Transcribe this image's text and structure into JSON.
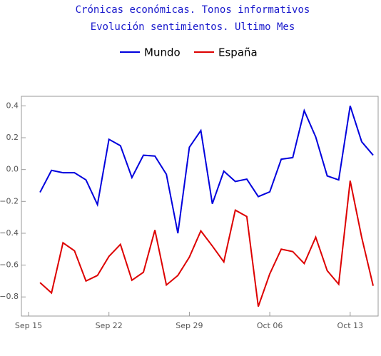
{
  "chart_data": {
    "type": "line",
    "title": "Crónicas económicas. Tonos informativos",
    "subtitle": "Evolución sentimientos. Ultimo Mes",
    "x": [
      "Sep 16",
      "Sep 17",
      "Sep 18",
      "Sep 19",
      "Sep 20",
      "Sep 21",
      "Sep 22",
      "Sep 23",
      "Sep 24",
      "Sep 25",
      "Sep 26",
      "Sep 27",
      "Sep 28",
      "Sep 29",
      "Sep 30",
      "Oct 01",
      "Oct 02",
      "Oct 03",
      "Oct 04",
      "Oct 05",
      "Oct 06",
      "Oct 07",
      "Oct 08",
      "Oct 09",
      "Oct 10",
      "Oct 11",
      "Oct 12",
      "Oct 13",
      "Oct 14",
      "Oct 15"
    ],
    "series": [
      {
        "name": "Mundo",
        "color": "#0000dd",
        "values": [
          -0.143,
          -0.005,
          -0.02,
          -0.02,
          -0.065,
          -0.22,
          0.19,
          0.15,
          -0.05,
          0.09,
          0.085,
          -0.03,
          -0.4,
          0.14,
          0.245,
          -0.215,
          -0.01,
          -0.075,
          -0.06,
          -0.17,
          -0.14,
          0.065,
          0.075,
          0.37,
          0.205,
          -0.04,
          -0.065,
          0.4,
          0.175,
          0.09
        ]
      },
      {
        "name": "España",
        "color": "#dd0000",
        "values": [
          -0.71,
          -0.775,
          -0.46,
          -0.51,
          -0.7,
          -0.665,
          -0.545,
          -0.47,
          -0.695,
          -0.645,
          -0.38,
          -0.725,
          -0.665,
          -0.55,
          -0.385,
          -0.48,
          -0.58,
          -0.255,
          -0.295,
          -0.86,
          -0.655,
          -0.5,
          -0.515,
          -0.59,
          -0.425,
          -0.635,
          -0.72,
          -0.07,
          -0.425,
          -0.73
        ]
      }
    ],
    "xlim": [
      "Sep 15",
      "Oct 15"
    ],
    "xticks": [
      "Sep 15",
      "Sep 22",
      "Sep 29",
      "Oct 06",
      "Oct 13"
    ],
    "ylim": [
      -0.92,
      0.46
    ],
    "yticks": [
      0.4,
      0.2,
      {
        "value": 0,
        "label": "0.0"
      },
      {
        "value": -0.2,
        "label": "−0.2"
      },
      {
        "value": -0.4,
        "label": "−0.4"
      },
      {
        "value": -0.6,
        "label": "−0.6"
      },
      {
        "value": -0.8,
        "label": "−0.8"
      }
    ],
    "legend": "top"
  }
}
